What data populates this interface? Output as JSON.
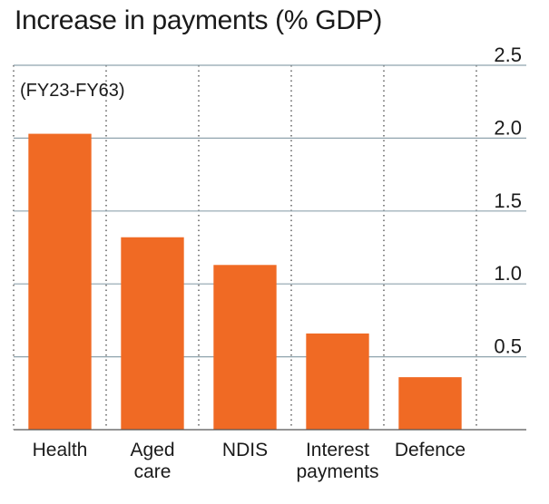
{
  "chart_data": {
    "type": "bar",
    "title": "Increase in payments (% GDP)",
    "subtitle": "(FY23-FY63)",
    "categories": [
      [
        "Health"
      ],
      [
        "Aged",
        "care"
      ],
      [
        "NDIS"
      ],
      [
        "Interest",
        "payments"
      ],
      [
        "Defence"
      ]
    ],
    "values": [
      2.03,
      1.32,
      1.13,
      0.66,
      0.36
    ],
    "ylim": [
      0,
      2.5
    ],
    "yticks": [
      "2.5",
      "2.0",
      "1.5",
      "1.0",
      "0.5"
    ],
    "ytick_values": [
      2.5,
      2.0,
      1.5,
      1.0,
      0.5
    ],
    "y_axis_position": "right",
    "grid": true,
    "bar_color": "#f06a24",
    "grid_color": "#8fa3ad",
    "xlabel": "",
    "ylabel": ""
  }
}
